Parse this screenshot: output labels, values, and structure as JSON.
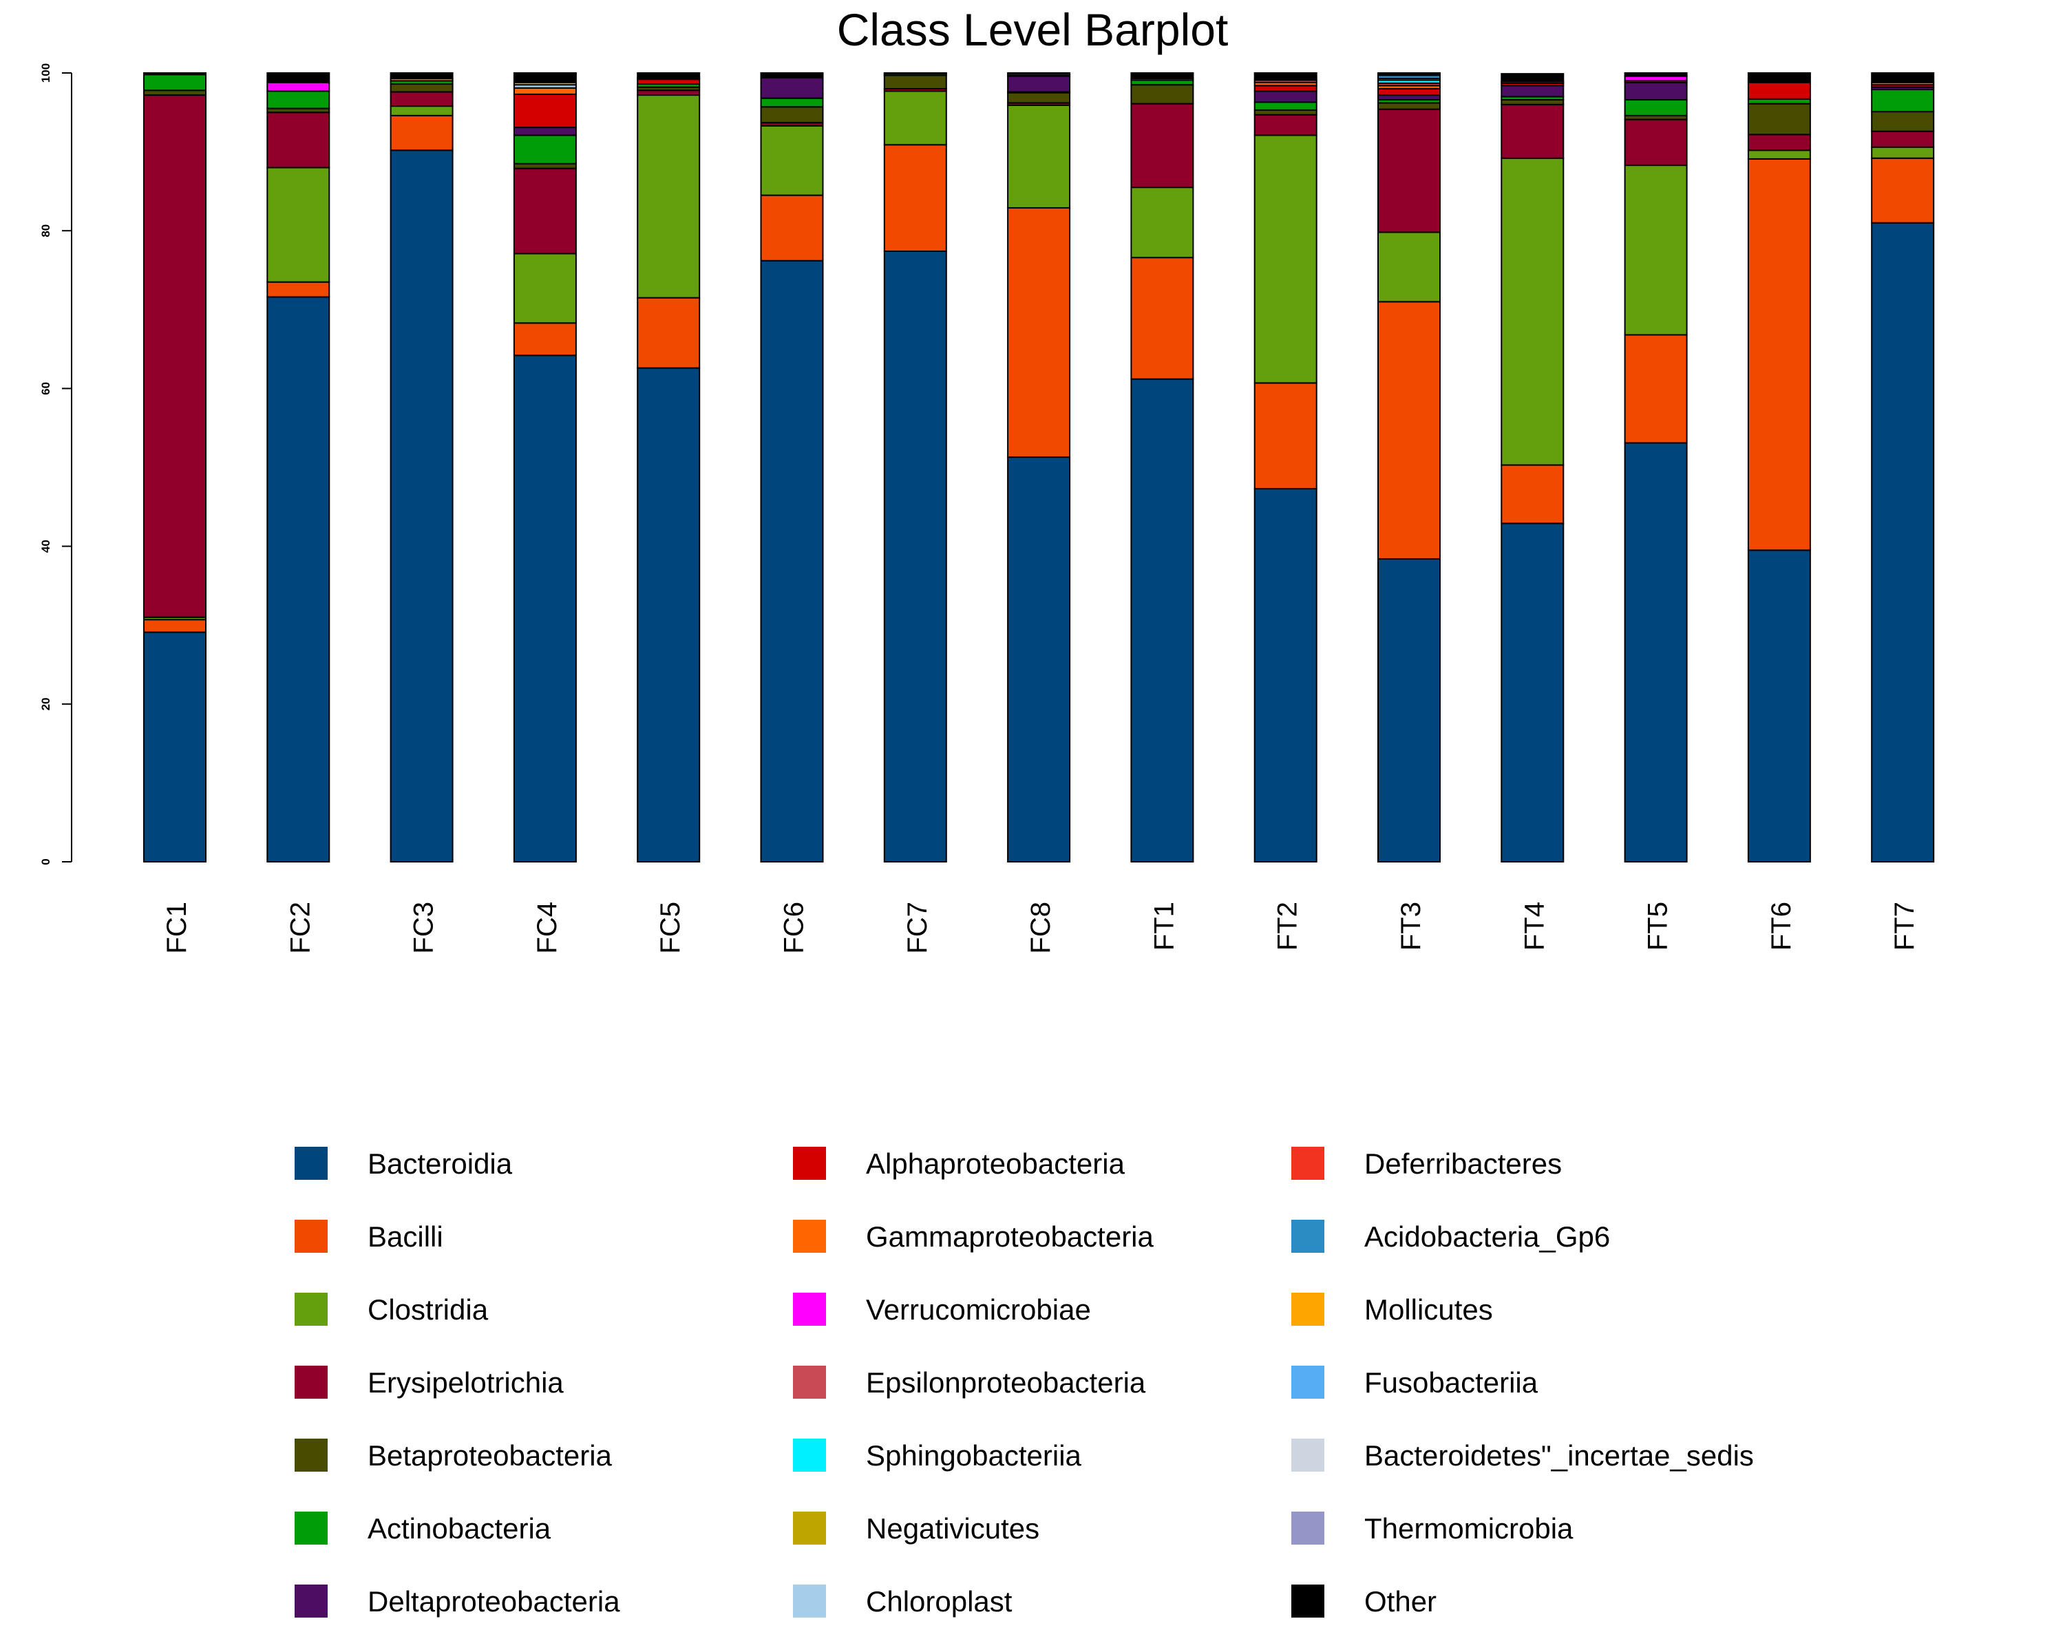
{
  "chart_data": {
    "type": "bar",
    "stacked": true,
    "title": "Class Level Barplot",
    "xlabel": "",
    "ylabel": "",
    "ylim": [
      0,
      100
    ],
    "yticks": [
      0,
      20,
      40,
      60,
      80,
      100
    ],
    "grid": false,
    "legend_position": "bottom",
    "categories": [
      "FC1",
      "FC2",
      "FC3",
      "FC4",
      "FC5",
      "FC6",
      "FC7",
      "FC8",
      "FT1",
      "FT2",
      "FT3",
      "FT4",
      "FT5",
      "FT6",
      "FT7"
    ],
    "series": [
      {
        "name": "Bacteroidia",
        "color": "#00457c",
        "values": [
          29.1,
          71.6,
          90.2,
          64.2,
          62.6,
          76.2,
          77.4,
          51.3,
          61.2,
          47.3,
          38.4,
          42.9,
          53.1,
          39.5,
          81.0
        ]
      },
      {
        "name": "Bacilli",
        "color": "#f14a00",
        "values": [
          1.6,
          1.9,
          4.4,
          4.1,
          8.9,
          8.3,
          13.5,
          31.6,
          15.4,
          13.4,
          32.6,
          7.4,
          13.7,
          49.6,
          8.2
        ]
      },
      {
        "name": "Clostridia",
        "color": "#64a00d",
        "values": [
          0.3,
          14.5,
          1.2,
          8.8,
          25.7,
          8.8,
          6.8,
          13.0,
          8.9,
          31.4,
          8.8,
          38.9,
          21.5,
          1.1,
          1.4
        ]
      },
      {
        "name": "Erysipelotrichia",
        "color": "#90002a",
        "values": [
          66.2,
          7.0,
          1.8,
          10.8,
          0.6,
          0.4,
          0.3,
          0.3,
          10.6,
          2.6,
          15.6,
          6.8,
          5.8,
          2.0,
          2.0
        ]
      },
      {
        "name": "Betaproteobacteria",
        "color": "#474c00",
        "values": [
          0.6,
          0.5,
          1.0,
          0.6,
          0.4,
          2.0,
          1.7,
          1.3,
          2.4,
          0.6,
          0.8,
          0.6,
          0.5,
          3.9,
          2.5
        ]
      },
      {
        "name": "Actinobacteria",
        "color": "#009d08",
        "values": [
          2.0,
          2.2,
          0.4,
          3.6,
          0.4,
          1.1,
          0.2,
          0.1,
          0.6,
          1.0,
          0.4,
          0.4,
          2.0,
          0.6,
          2.8
        ]
      },
      {
        "name": "Deltaproteobacteria",
        "color": "#4c0d63",
        "values": [
          0,
          0,
          0,
          1.0,
          0,
          2.6,
          0,
          2.0,
          0,
          1.4,
          0.6,
          1.4,
          2.2,
          0,
          0.3
        ]
      },
      {
        "name": "Alphaproteobacteria",
        "color": "#d40000",
        "values": [
          0,
          0,
          0,
          4.2,
          0.6,
          0,
          0,
          0.2,
          0,
          0.7,
          0.8,
          0.3,
          0,
          2.1,
          0.3
        ]
      },
      {
        "name": "Gammaproteobacteria",
        "color": "#ff6600",
        "values": [
          0,
          0,
          0.3,
          0.8,
          0.1,
          0,
          0,
          0.2,
          0.2,
          0.4,
          0.4,
          0.2,
          0.2,
          0,
          0.3
        ]
      },
      {
        "name": "Verrucomicrobiae",
        "color": "#ff00ff",
        "values": [
          0,
          1.1,
          0,
          0,
          0,
          0,
          0,
          0,
          0,
          0,
          0,
          0,
          0.6,
          0,
          0
        ]
      },
      {
        "name": "Epsilonproteobacteria",
        "color": "#c94a55",
        "values": [
          0,
          0,
          0,
          0,
          0,
          0,
          0,
          0,
          0,
          0.3,
          0.3,
          0,
          0,
          0,
          0
        ]
      },
      {
        "name": "Sphingobacteriia",
        "color": "#00f0ff",
        "values": [
          0,
          0,
          0,
          0,
          0,
          0,
          0,
          0,
          0,
          0,
          0.4,
          0,
          0,
          0,
          0
        ]
      },
      {
        "name": "Negativicutes",
        "color": "#bfa500",
        "values": [
          0,
          0,
          0,
          0,
          0,
          0,
          0,
          0,
          0,
          0,
          0,
          0,
          0,
          0,
          0
        ]
      },
      {
        "name": "Chloroplast",
        "color": "#a6cdea",
        "values": [
          0,
          0,
          0,
          0.4,
          0,
          0,
          0,
          0,
          0,
          0,
          0.2,
          0,
          0,
          0,
          0
        ]
      },
      {
        "name": "Deferribacteres",
        "color": "#f2331f",
        "values": [
          0,
          0,
          0,
          0,
          0,
          0,
          0,
          0,
          0,
          0,
          0,
          0,
          0,
          0,
          0
        ]
      },
      {
        "name": "Acidobacteria_Gp6",
        "color": "#2b8cc4",
        "values": [
          0,
          0,
          0,
          0,
          0,
          0,
          0,
          0,
          0,
          0,
          0.4,
          0,
          0,
          0,
          0
        ]
      },
      {
        "name": "Mollicutes",
        "color": "#ffa500",
        "values": [
          0,
          0,
          0,
          0.3,
          0,
          0,
          0,
          0,
          0,
          0,
          0,
          0,
          0,
          0,
          0
        ]
      },
      {
        "name": "Fusobacteriia",
        "color": "#55aef2",
        "values": [
          0,
          0,
          0,
          0,
          0,
          0,
          0,
          0,
          0,
          0,
          0,
          0,
          0,
          0,
          0
        ]
      },
      {
        "name": "Bacteroidetes\"_incertae_sedis",
        "color": "#cdd6e0",
        "values": [
          0,
          0,
          0,
          0,
          0,
          0,
          0,
          0,
          0,
          0,
          0,
          0,
          0,
          0,
          0
        ]
      },
      {
        "name": "Thermomicrobia",
        "color": "#9596c7",
        "values": [
          0,
          0,
          0,
          0,
          0,
          0,
          0,
          0,
          0,
          0,
          0,
          0,
          0,
          0,
          0
        ]
      },
      {
        "name": "Other",
        "color": "#000000",
        "values": [
          0.2,
          1.2,
          0.7,
          1.2,
          0.7,
          0.6,
          0.1,
          0,
          0.7,
          0.9,
          0.3,
          1.0,
          0.4,
          1.2,
          1.2
        ]
      }
    ]
  }
}
